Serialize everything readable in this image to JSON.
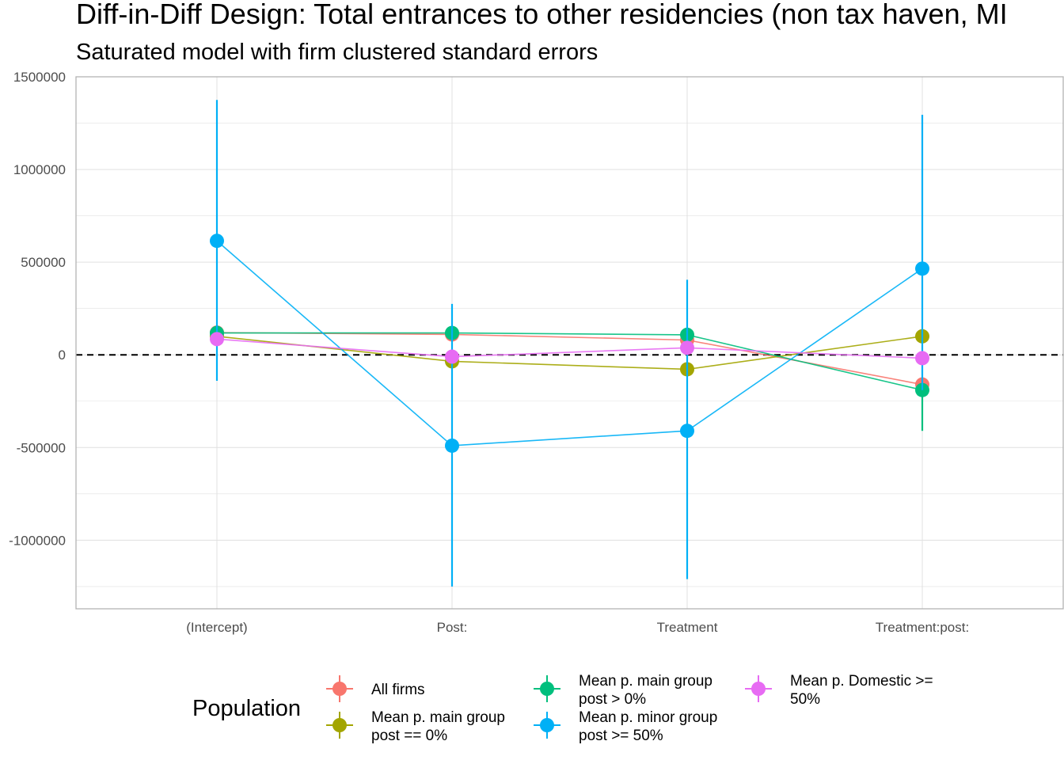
{
  "chart_data": {
    "type": "scatter",
    "title": "Diff-in-Diff Design: Total entrances to other residencies (non tax haven, MI",
    "subtitle": "Saturated model with firm clustered standard errors",
    "xlabel": "",
    "ylabel": "",
    "categories": [
      "(Intercept)",
      "Post:",
      "Treatment",
      "Treatment:post:"
    ],
    "ylim": [
      -1370000,
      1500000
    ],
    "yticks": [
      1500000,
      1000000,
      500000,
      0,
      -500000,
      -1000000
    ],
    "ytick_labels": [
      "1500000",
      "1000000",
      "500000",
      "0",
      "-500000",
      "-1000000"
    ],
    "grid": true,
    "reference_line": 0,
    "legend": {
      "title": "Population",
      "position": "bottom"
    },
    "series": [
      {
        "name": "All firms",
        "color": "#F8766D",
        "values": [
          120000,
          110000,
          80000,
          -160000
        ],
        "lower": [
          120000,
          110000,
          80000,
          -160000
        ],
        "upper": [
          120000,
          110000,
          80000,
          -160000
        ]
      },
      {
        "name": "Mean p. main group post == 0%",
        "color": "#A3A500",
        "values": [
          100000,
          -35000,
          -78000,
          100000
        ],
        "lower": [
          100000,
          -35000,
          -78000,
          100000
        ],
        "upper": [
          100000,
          -35000,
          -78000,
          100000
        ]
      },
      {
        "name": "Mean p. main group post > 0%",
        "color": "#00BF7D",
        "values": [
          118000,
          118000,
          108000,
          -190000
        ],
        "lower": [
          118000,
          118000,
          108000,
          -410000
        ],
        "upper": [
          118000,
          118000,
          108000,
          -190000
        ]
      },
      {
        "name": "Mean p. minor group post >= 50%",
        "color": "#00B0F6",
        "values": [
          615000,
          -490000,
          -410000,
          465000
        ],
        "lower": [
          -140000,
          -1250000,
          -1210000,
          -190000
        ],
        "upper": [
          1375000,
          275000,
          405000,
          1295000
        ]
      },
      {
        "name": "Mean p. Domestic >= 50%",
        "color": "#E76BF3",
        "values": [
          85000,
          -10000,
          38000,
          -18000
        ],
        "lower": [
          85000,
          -10000,
          38000,
          -18000
        ],
        "upper": [
          85000,
          -10000,
          38000,
          -18000
        ]
      }
    ]
  },
  "legend_rows": [
    {
      "col": 0,
      "row": 0,
      "series": 0,
      "lines": [
        "All firms"
      ]
    },
    {
      "col": 0,
      "row": 1,
      "series": 1,
      "lines": [
        "Mean p. main group",
        "post == 0%"
      ]
    },
    {
      "col": 1,
      "row": 0,
      "series": 2,
      "lines": [
        "Mean p. main group",
        "post > 0%"
      ]
    },
    {
      "col": 1,
      "row": 1,
      "series": 3,
      "lines": [
        "Mean p. minor group",
        "post >= 50%"
      ]
    },
    {
      "col": 2,
      "row": 0,
      "series": 4,
      "lines": [
        "Mean p. Domestic >=",
        "50%"
      ]
    }
  ]
}
